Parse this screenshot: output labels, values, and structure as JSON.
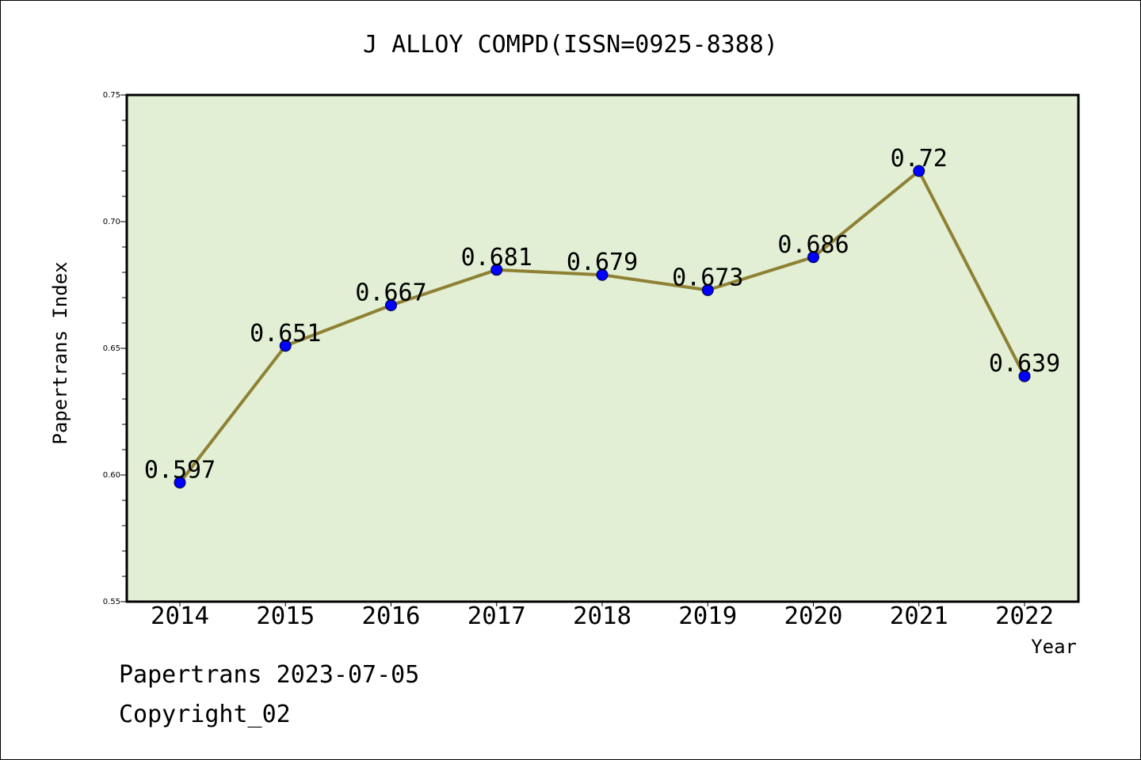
{
  "chart_data": {
    "type": "line",
    "title": "J ALLOY COMPD(ISSN=0925-8388)",
    "xlabel": "Year",
    "ylabel": "Papertrans Index",
    "categories": [
      "2014",
      "2015",
      "2016",
      "2017",
      "2018",
      "2019",
      "2020",
      "2021",
      "2022"
    ],
    "series": [
      {
        "values": [
          0.597,
          0.651,
          0.667,
          0.681,
          0.679,
          0.673,
          0.686,
          0.72,
          0.639
        ]
      }
    ],
    "data_labels": [
      "0.597",
      "0.651",
      "0.667",
      "0.681",
      "0.679",
      "0.673",
      "0.686",
      "0.72",
      "0.639"
    ],
    "ylim": [
      0.55,
      0.75
    ],
    "yticks": [
      "0.55",
      "0.60",
      "0.65",
      "0.70",
      "0.75"
    ],
    "grid": false,
    "colors": {
      "plot_background": "#e2efd5",
      "line": "#8f8134",
      "marker": "#0000ff"
    }
  },
  "footer": {
    "source": "Papertrans 2023-07-05",
    "copyright": "Copyright_02"
  }
}
